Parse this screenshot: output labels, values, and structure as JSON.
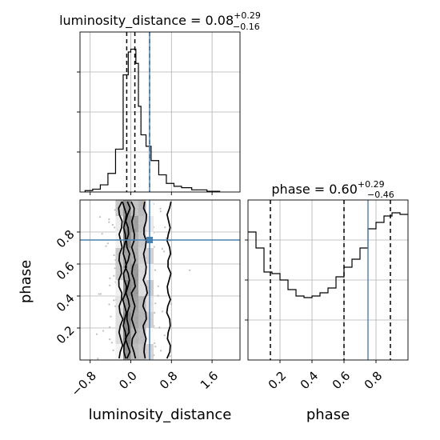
{
  "colors": {
    "truth": "#4682b4",
    "contour": "#000000",
    "hist": "#000000",
    "scatter": "#a9a9a9",
    "grid": "#b0b0b0"
  },
  "chart_data": [
    {
      "type": "histogram",
      "panel": "top-left",
      "parameter": "luminosity_distance",
      "title": {
        "main": "luminosity_distance = 0.08",
        "sup": "+0.29",
        "sub": "−0.16"
      },
      "xlim": [
        -1.0,
        2.15
      ],
      "ylim": [
        0,
        1.12
      ],
      "y_normalized": true,
      "bin_edges": [
        -0.9,
        -0.75,
        -0.6,
        -0.45,
        -0.3,
        -0.15,
        -0.05,
        0.0,
        0.05,
        0.1,
        0.15,
        0.2,
        0.3,
        0.4,
        0.55,
        0.7,
        0.85,
        1.0,
        1.2,
        1.5,
        1.75
      ],
      "values": [
        0.01,
        0.02,
        0.05,
        0.13,
        0.3,
        0.82,
        0.98,
        1.0,
        1.0,
        0.9,
        0.6,
        0.4,
        0.32,
        0.22,
        0.12,
        0.06,
        0.04,
        0.03,
        0.015,
        0.005
      ],
      "quantiles": [
        -0.08,
        0.08,
        0.37
      ],
      "truth": 0.37,
      "xticks": [
        -0.8,
        0.0,
        0.8,
        1.6
      ],
      "ytick_count": 3,
      "grid": true
    },
    {
      "type": "scatter",
      "panel": "bottom-left",
      "xlabel": "luminosity_distance",
      "ylabel": "phase",
      "xlim": [
        -1.0,
        2.15
      ],
      "ylim": [
        0.0,
        1.0
      ],
      "xtick_labels": [
        "−0.8",
        "0.0",
        "0.8",
        "1.6"
      ],
      "xticks": [
        -0.8,
        0.0,
        0.8,
        1.6
      ],
      "yticks": [
        0.2,
        0.4,
        0.6,
        0.8
      ],
      "ytick_labels": [
        "0.2",
        "0.4",
        "0.6",
        "0.8"
      ],
      "truth": {
        "x": 0.37,
        "y": 0.75
      },
      "density_columns": [
        {
          "x0": -0.15,
          "x1": 0.0,
          "level": 0.55
        },
        {
          "x0": 0.0,
          "x1": 0.15,
          "level": 0.45
        },
        {
          "x0": 0.15,
          "x1": 0.3,
          "level": 0.3
        },
        {
          "x0": -0.3,
          "x1": -0.15,
          "level": 0.2
        },
        {
          "x0": 0.3,
          "x1": 0.45,
          "level": 0.15
        }
      ],
      "contours": [
        {
          "name": "inner",
          "x": [
            -0.06,
            0.05
          ]
        },
        {
          "name": "middle",
          "x": [
            -0.12,
            0.28
          ]
        },
        {
          "name": "outer",
          "x": [
            -0.2,
            0.75
          ]
        }
      ],
      "grid": true
    },
    {
      "type": "histogram",
      "panel": "bottom-right",
      "parameter": "phase",
      "xlabel": "phase",
      "title": {
        "main": "phase = 0.60",
        "sup": "+0.29",
        "sub": "−0.46"
      },
      "xlim": [
        0.0,
        1.0
      ],
      "ylim": [
        0,
        1.0
      ],
      "y_normalized": true,
      "bin_edges": [
        0.0,
        0.05,
        0.1,
        0.15,
        0.2,
        0.25,
        0.3,
        0.35,
        0.4,
        0.45,
        0.5,
        0.55,
        0.6,
        0.65,
        0.7,
        0.75,
        0.8,
        0.85,
        0.9,
        0.95,
        1.0
      ],
      "values": [
        0.8,
        0.7,
        0.55,
        0.54,
        0.5,
        0.44,
        0.4,
        0.39,
        0.4,
        0.42,
        0.45,
        0.52,
        0.58,
        0.63,
        0.7,
        0.82,
        0.86,
        0.9,
        0.92,
        0.91
      ],
      "quantiles": [
        0.14,
        0.6,
        0.89
      ],
      "truth": 0.75,
      "xticks": [
        0.2,
        0.4,
        0.6,
        0.8
      ],
      "xtick_labels": [
        "0.2",
        "0.4",
        "0.6",
        "0.8"
      ],
      "ytick_count": 3,
      "grid": true
    }
  ]
}
